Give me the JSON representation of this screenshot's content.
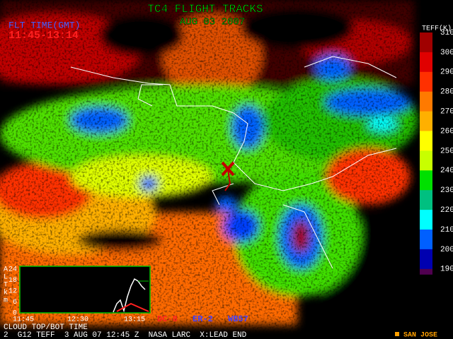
{
  "header": {
    "title": "TC4 FLIGHT TRACKS",
    "date": "AUG 03 2007",
    "time_label": "FLT TIME(GMT)",
    "time_range": "11:45-13:14"
  },
  "colorbar": {
    "label": "TEFF(K)",
    "ticks": [
      "310",
      "300",
      "290",
      "280",
      "270",
      "260",
      "250",
      "240",
      "230",
      "220",
      "210",
      "200",
      "190"
    ],
    "colors": [
      "#a00000",
      "#e00000",
      "#ff3000",
      "#ff7a00",
      "#ffb000",
      "#ffff00",
      "#c8ff00",
      "#00e000",
      "#00c080",
      "#00ffff",
      "#0060ff",
      "#0000b0"
    ]
  },
  "inset": {
    "axis_letters": [
      "A",
      "L",
      "T",
      "k",
      "m"
    ],
    "yticks": [
      "24",
      "18",
      "12",
      "6",
      "0"
    ],
    "xticks": [
      "11:45",
      "12:30",
      "13:15"
    ],
    "caption": "CLOUD TOP/BOT TIME"
  },
  "aircraft": [
    {
      "name": "DC-8",
      "color": "#ff2020"
    },
    {
      "name": "ER-2",
      "color": "#4040ff"
    },
    {
      "name": "WB57",
      "color": "#4040ff"
    }
  ],
  "footer": {
    "info": "2  G12 TEFF  3 AUG 07 12:45 Z  NASA LARC  X:LEAD END",
    "site": "SAN JOSE"
  }
}
